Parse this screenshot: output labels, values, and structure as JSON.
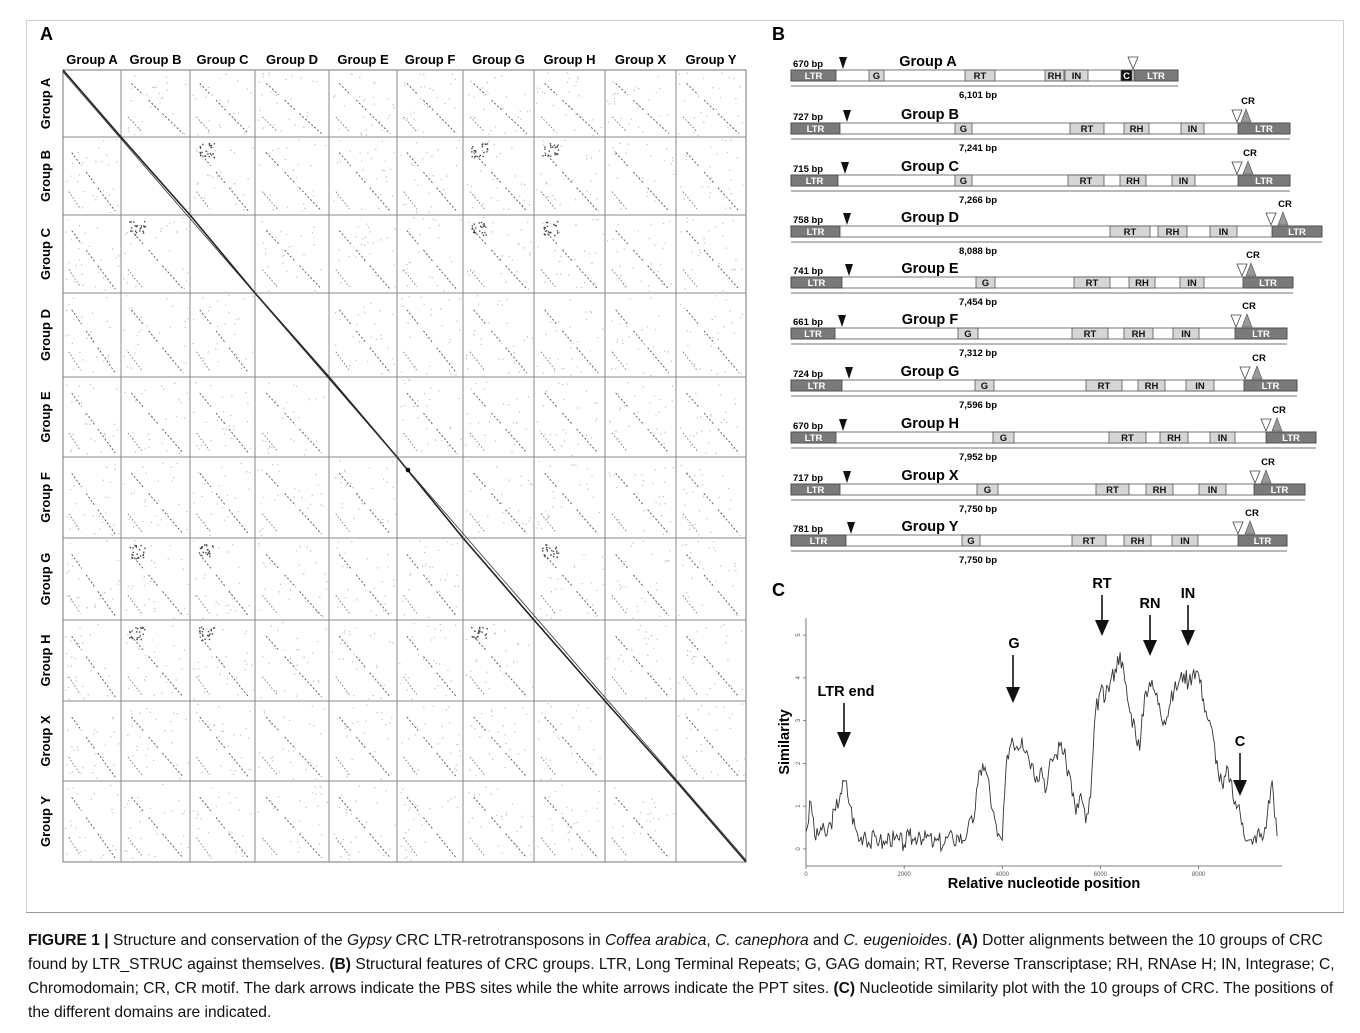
{
  "panel_labels": {
    "a": "A",
    "b": "B",
    "c": "C"
  },
  "groups": [
    "Group A",
    "Group B",
    "Group C",
    "Group D",
    "Group E",
    "Group F",
    "Group G",
    "Group H",
    "Group X",
    "Group Y"
  ],
  "col_headers": [
    "Group A",
    "Group B",
    "Group C",
    "Group D",
    "Group E",
    "Group F",
    "Group G",
    "Group H",
    "Group X",
    "Group Y"
  ],
  "structures": [
    {
      "name": "Group A",
      "ltr_bp": "670 bp",
      "total": "6,101 bp",
      "domains": [
        {
          "label": "G"
        },
        {
          "label": "RT"
        },
        {
          "label": "RH"
        },
        {
          "label": "IN"
        },
        {
          "label": "C"
        }
      ],
      "cr": ""
    },
    {
      "name": "Group B",
      "ltr_bp": "727 bp",
      "total": "7,241 bp",
      "domains": [
        {
          "label": "G"
        },
        {
          "label": "RT"
        },
        {
          "label": "RH"
        },
        {
          "label": "IN"
        }
      ],
      "cr": "CR"
    },
    {
      "name": "Group C",
      "ltr_bp": "715 bp",
      "total": "7,266 bp",
      "domains": [
        {
          "label": "G"
        },
        {
          "label": "RT"
        },
        {
          "label": "RH"
        },
        {
          "label": "IN"
        }
      ],
      "cr": "CR"
    },
    {
      "name": "Group D",
      "ltr_bp": "758 bp",
      "total": "8,088 bp",
      "domains": [
        {
          "label": "RT"
        },
        {
          "label": "RH"
        },
        {
          "label": "IN"
        }
      ],
      "cr": "CR"
    },
    {
      "name": "Group E",
      "ltr_bp": "741 bp",
      "total": "7,454 bp",
      "domains": [
        {
          "label": "G"
        },
        {
          "label": "RT"
        },
        {
          "label": "RH"
        },
        {
          "label": "IN"
        }
      ],
      "cr": "CR"
    },
    {
      "name": "Group F",
      "ltr_bp": "661 bp",
      "total": "7,312 bp",
      "domains": [
        {
          "label": "G"
        },
        {
          "label": "RT"
        },
        {
          "label": "RH"
        },
        {
          "label": "IN"
        }
      ],
      "cr": "CR"
    },
    {
      "name": "Group G",
      "ltr_bp": "724 bp",
      "total": "7,596 bp",
      "domains": [
        {
          "label": "G"
        },
        {
          "label": "RT"
        },
        {
          "label": "RH"
        },
        {
          "label": "IN"
        }
      ],
      "cr": "CR"
    },
    {
      "name": "Group H",
      "ltr_bp": "670 bp",
      "total": "7,952 bp",
      "domains": [
        {
          "label": "G"
        },
        {
          "label": "RT"
        },
        {
          "label": "RH"
        },
        {
          "label": "IN"
        }
      ],
      "cr": "CR"
    },
    {
      "name": "Group X",
      "ltr_bp": "717 bp",
      "total": "7,750 bp",
      "domains": [
        {
          "label": "G"
        },
        {
          "label": "RT"
        },
        {
          "label": "RH"
        },
        {
          "label": "IN"
        }
      ],
      "cr": "CR"
    },
    {
      "name": "Group Y",
      "ltr_bp": "781 bp",
      "total": "7,750 bp",
      "domains": [
        {
          "label": "G"
        },
        {
          "label": "RT"
        },
        {
          "label": "RH"
        },
        {
          "label": "IN"
        }
      ],
      "cr": "CR"
    }
  ],
  "ltr_label": "LTR",
  "chart_data": {
    "type": "line",
    "title": "",
    "xlabel": "Relative nucleotide position",
    "ylabel": "Similarity",
    "xlim": [
      0,
      9700
    ],
    "ylim": [
      -0.4,
      5.4
    ],
    "xticks": [
      "0",
      "2000",
      "4000",
      "6000",
      "8000"
    ],
    "yticks": [
      "0",
      "1",
      "2",
      "3",
      "4",
      "5"
    ],
    "series": [
      {
        "name": "",
        "x": [
          0,
          100,
          200,
          300,
          400,
          500,
          600,
          700,
          800,
          900,
          1000,
          1100,
          1200,
          1300,
          1400,
          1500,
          1600,
          1700,
          1800,
          1900,
          2000,
          2100,
          2200,
          2300,
          2400,
          2500,
          2600,
          2700,
          2800,
          2900,
          3000,
          3100,
          3200,
          3300,
          3400,
          3500,
          3600,
          3700,
          3800,
          3900,
          4000,
          4100,
          4200,
          4300,
          4400,
          4500,
          4600,
          4700,
          4800,
          4900,
          5000,
          5100,
          5200,
          5300,
          5400,
          5500,
          5600,
          5700,
          5800,
          5900,
          6000,
          6100,
          6200,
          6300,
          6400,
          6500,
          6600,
          6700,
          6800,
          6900,
          7000,
          7100,
          7200,
          7300,
          7400,
          7500,
          7600,
          7700,
          7800,
          7900,
          8000,
          8100,
          8200,
          8300,
          8400,
          8500,
          8600,
          8700,
          8800,
          8900,
          9000,
          9100,
          9200,
          9300,
          9400,
          9500,
          9600
        ],
        "y": [
          0.4,
          1.1,
          0.2,
          0.5,
          0.3,
          0.6,
          0.9,
          1.3,
          1.6,
          1.0,
          0.5,
          0.2,
          0.4,
          0.1,
          0.3,
          0.2,
          0.1,
          0.3,
          0.2,
          0.2,
          0.1,
          0.3,
          0.2,
          0.4,
          0.2,
          0.3,
          0.1,
          0.2,
          0.1,
          0.3,
          0.2,
          0.3,
          0.2,
          0.5,
          0.6,
          1.5,
          2.0,
          1.7,
          0.9,
          0.3,
          0.2,
          2.2,
          2.6,
          2.4,
          2.6,
          2.3,
          2.0,
          1.7,
          1.9,
          1.4,
          2.1,
          2.2,
          2.5,
          2.0,
          1.6,
          0.8,
          1.3,
          0.6,
          1.2,
          3.2,
          3.7,
          3.5,
          3.9,
          4.2,
          4.6,
          3.9,
          3.2,
          2.9,
          2.3,
          3.6,
          3.9,
          3.7,
          3.4,
          3.0,
          3.3,
          3.7,
          3.9,
          4.1,
          3.9,
          4.2,
          4.1,
          3.5,
          3.0,
          2.6,
          1.8,
          1.4,
          1.9,
          1.2,
          1.0,
          0.6,
          0.2,
          0.1,
          0.4,
          0.2,
          0.8,
          1.6,
          0.3
        ]
      }
    ],
    "annotations": [
      "LTR end",
      "G",
      "RT",
      "RN",
      "IN",
      "C"
    ]
  },
  "caption": {
    "figure_label": "FIGURE 1 |",
    "text1": " Structure and conservation of the ",
    "gypsy": "Gypsy",
    "text2": " CRC LTR-retrotransposons in ",
    "sp1": "Coffea arabica",
    "text3": ", ",
    "sp2": "C. canephora",
    "text4": " and ",
    "sp3": "C. eugenioides",
    "text5": ". ",
    "a_label": "(A)",
    "a_text": " Dotter alignments between the 10 groups of CRC found by LTR_STRUC against themselves. ",
    "b_label": "(B)",
    "b_text": " Structural features of CRC groups. LTR, Long Terminal Repeats; G, GAG domain; RT, Reverse Transcriptase; RH, RNAse H; IN, Integrase; C, Chromodomain; CR, CR motif. The dark arrows indicate the PBS sites while the white arrows indicate the PPT sites. ",
    "c_label": "(C)",
    "c_text": " Nucleotide similarity plot with the 10 groups of CRC. The positions of the different domains are indicated."
  }
}
